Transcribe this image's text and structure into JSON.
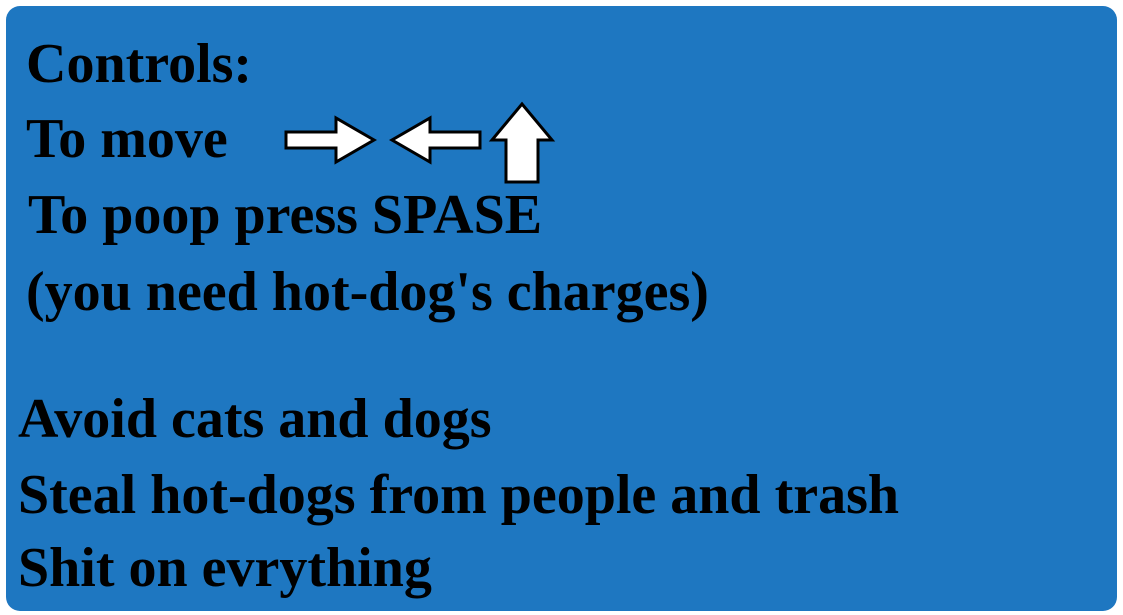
{
  "controls": {
    "heading": "Controls:",
    "move_label": "To move",
    "move_keys": [
      "right-arrow-icon",
      "left-arrow-icon",
      "up-arrow-icon"
    ],
    "poop_line": "To poop press SPASE",
    "poop_note": "(you need hot-dog's charges)"
  },
  "rules": [
    "Avoid cats and dogs",
    "Steal hot-dogs from people and trash",
    "Shit on evrything"
  ],
  "colors": {
    "panel_background": "#1e77c1",
    "panel_border": "#ffffff",
    "text": "#000000",
    "arrow_fill": "#ffffff",
    "arrow_outline": "#000000"
  }
}
